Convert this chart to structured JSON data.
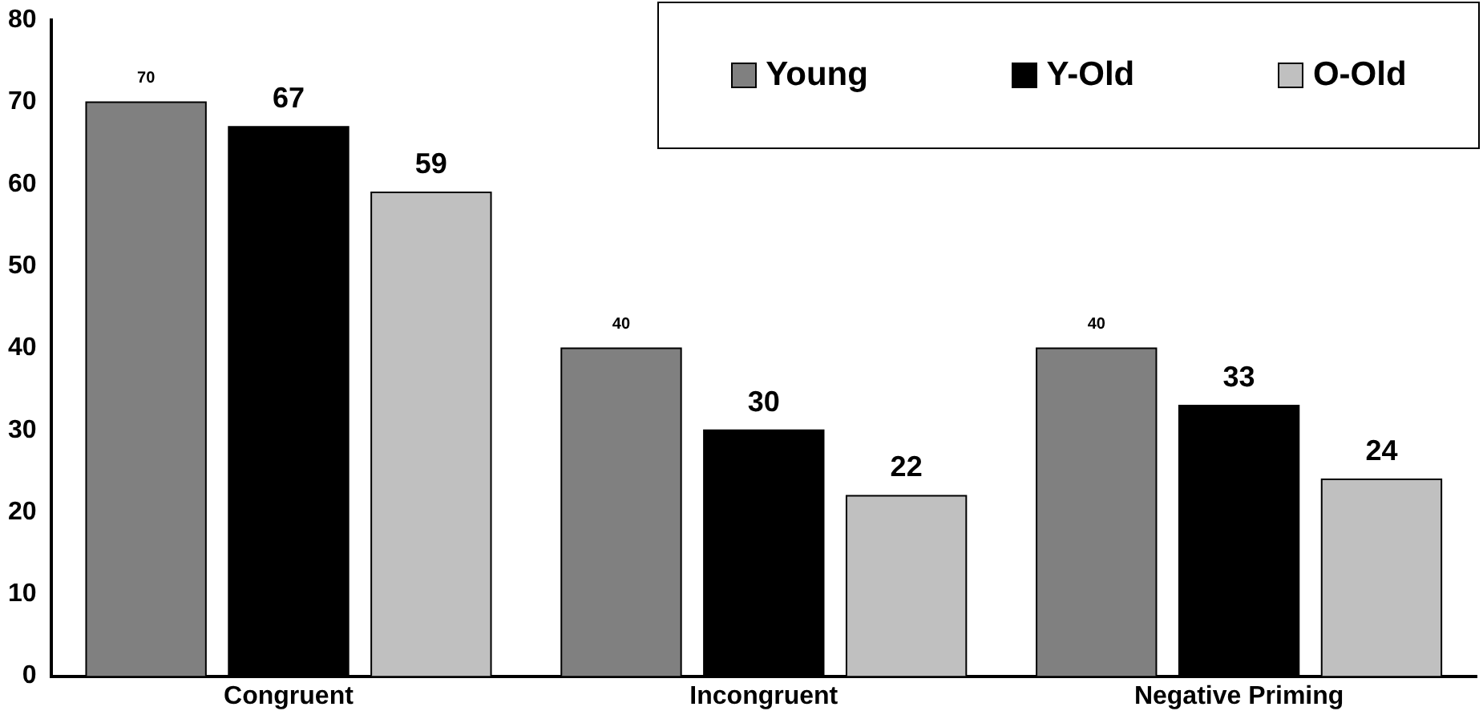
{
  "chart_data": {
    "type": "bar",
    "categories": [
      "Congruent",
      "Incongruent",
      "Negative Priming"
    ],
    "series": [
      {
        "name": "Young",
        "color": "#808080",
        "values": [
          70,
          40,
          40
        ]
      },
      {
        "name": "Y-Old",
        "color": "#000000",
        "values": [
          67,
          30,
          33
        ]
      },
      {
        "name": "O-Old",
        "color": "#c0c0c0",
        "values": [
          59,
          22,
          24
        ]
      }
    ],
    "ylim": [
      0,
      80
    ],
    "yticks": [
      0,
      10,
      20,
      30,
      40,
      50,
      60,
      70,
      80
    ],
    "grid": false,
    "legend": "top right",
    "data_labels": true
  }
}
